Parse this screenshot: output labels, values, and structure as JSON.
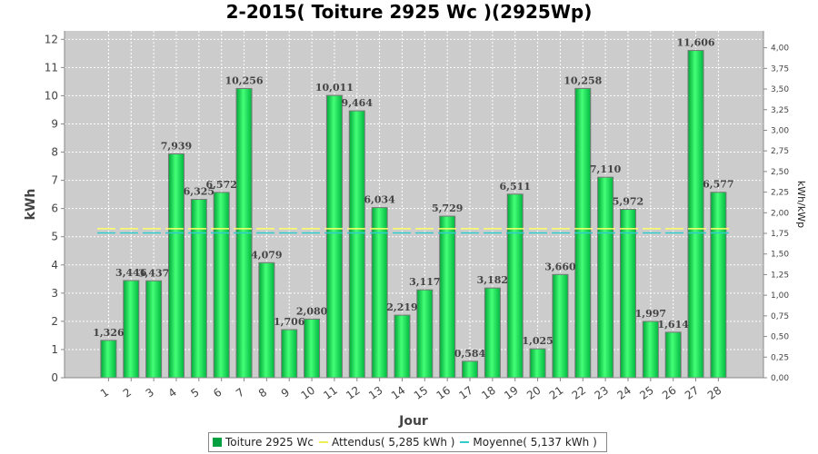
{
  "chart_data": {
    "type": "bar",
    "title": "2-2015( Toiture 2925 Wc )(2925Wp)",
    "xlabel": "Jour",
    "ylabel": "kWh",
    "ylabel_right": "kWh/kWp",
    "ylim": [
      0,
      12.3
    ],
    "ylim_right": [
      0,
      4.205
    ],
    "yticks": [
      "0",
      "1",
      "2",
      "3",
      "4",
      "5",
      "6",
      "7",
      "8",
      "9",
      "10",
      "11",
      "12"
    ],
    "yticks_right": [
      "0,00",
      "0,25",
      "0,50",
      "0,75",
      "1,00",
      "1,25",
      "1,50",
      "1,75",
      "2,00",
      "2,25",
      "2,50",
      "2,75",
      "3,00",
      "3,25",
      "3,50",
      "3,75",
      "4,00"
    ],
    "categories": [
      "1",
      "2",
      "3",
      "4",
      "5",
      "6",
      "7",
      "8",
      "9",
      "10",
      "11",
      "12",
      "13",
      "14",
      "15",
      "16",
      "17",
      "18",
      "19",
      "20",
      "21",
      "22",
      "23",
      "24",
      "25",
      "26",
      "27",
      "28"
    ],
    "series": [
      {
        "name": "Toiture 2925 Wc",
        "color": "#00cc44",
        "values": [
          1.326,
          3.446,
          3.437,
          7.939,
          6.325,
          6.572,
          10.256,
          4.079,
          1.706,
          2.08,
          10.011,
          9.464,
          6.034,
          2.219,
          3.117,
          5.729,
          0.584,
          3.182,
          6.511,
          1.025,
          3.66,
          10.258,
          7.11,
          5.972,
          1.997,
          1.614,
          11.606,
          6.577
        ],
        "labels": [
          "1,326",
          "3,446",
          "3,437",
          "7,939",
          "6,325",
          "6,572",
          "10,256",
          "4,079",
          "1,706",
          "2,080",
          "10,011",
          "9,464",
          "6,034",
          "2,219",
          "3,117",
          "5,729",
          "0,584",
          "3,182",
          "6,511",
          "1,025",
          "3,660",
          "10,258",
          "7,110",
          "5,972",
          "1,997",
          "1,614",
          "11,606",
          "6,577"
        ]
      }
    ],
    "reference_lines": [
      {
        "name": "Attendus( 5,285 kWh )",
        "value": 5.285,
        "color": "#ffff66"
      },
      {
        "name": "Moyenne( 5,137 kWh )",
        "value": 5.137,
        "color": "#33cccc"
      }
    ],
    "grid": true,
    "legend_position": "bottom"
  }
}
